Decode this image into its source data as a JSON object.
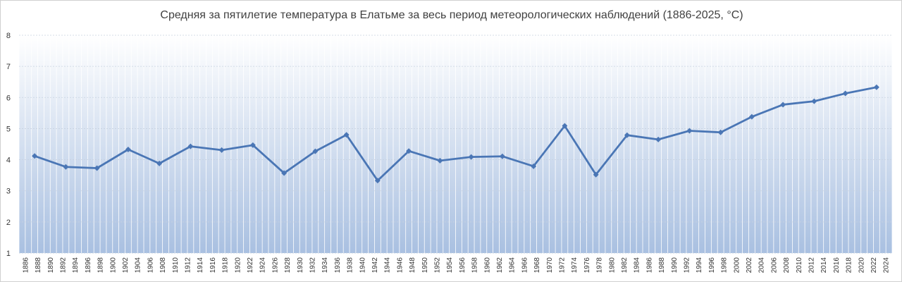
{
  "chart_data": {
    "type": "line",
    "title": "Средняя за пятилетие температура в Елатьме за весь период метеорологических наблюдений (1886-2025, °C)",
    "xlabel": "",
    "ylabel": "",
    "ylim": [
      1,
      8
    ],
    "yticks": [
      1,
      2,
      3,
      4,
      5,
      6,
      7,
      8
    ],
    "xlim": [
      1886,
      2024
    ],
    "xticks": [
      1886,
      1888,
      1890,
      1892,
      1894,
      1896,
      1898,
      1900,
      1902,
      1904,
      1906,
      1908,
      1910,
      1912,
      1914,
      1916,
      1918,
      1920,
      1922,
      1924,
      1926,
      1928,
      1930,
      1932,
      1934,
      1936,
      1938,
      1940,
      1942,
      1944,
      1946,
      1948,
      1950,
      1952,
      1954,
      1956,
      1958,
      1960,
      1962,
      1964,
      1966,
      1968,
      1970,
      1972,
      1974,
      1976,
      1978,
      1980,
      1982,
      1984,
      1986,
      1988,
      1990,
      1992,
      1994,
      1996,
      1998,
      2000,
      2002,
      2004,
      2006,
      2008,
      2010,
      2012,
      2014,
      2016,
      2018,
      2020,
      2022,
      2024
    ],
    "grid": true,
    "legend": "none",
    "colors": {
      "line": "#4a76b5",
      "gradient_top": "#ffffff",
      "gradient_bottom": "#a9c0e1",
      "grid": "#ffffff"
    },
    "series": [
      {
        "x": [
          1887.5,
          1892.5,
          1897.5,
          1902.5,
          1907.5,
          1912.5,
          1917.5,
          1922.5,
          1927.5,
          1932.5,
          1937.5,
          1942.5,
          1947.5,
          1952.5,
          1957.5,
          1962.5,
          1967.5,
          1972.5,
          1977.5,
          1982.5,
          1987.5,
          1992.5,
          1997.5,
          2002.5,
          2007.5,
          2012.5,
          2017.5,
          2022.5
        ],
        "values": [
          4.12,
          3.77,
          3.73,
          4.33,
          3.88,
          4.43,
          4.31,
          4.47,
          3.57,
          4.27,
          4.8,
          3.33,
          4.28,
          3.97,
          4.09,
          4.11,
          3.79,
          5.09,
          3.52,
          4.79,
          4.65,
          4.93,
          4.88,
          5.38,
          5.77,
          5.88,
          6.13,
          6.33
        ]
      }
    ]
  }
}
